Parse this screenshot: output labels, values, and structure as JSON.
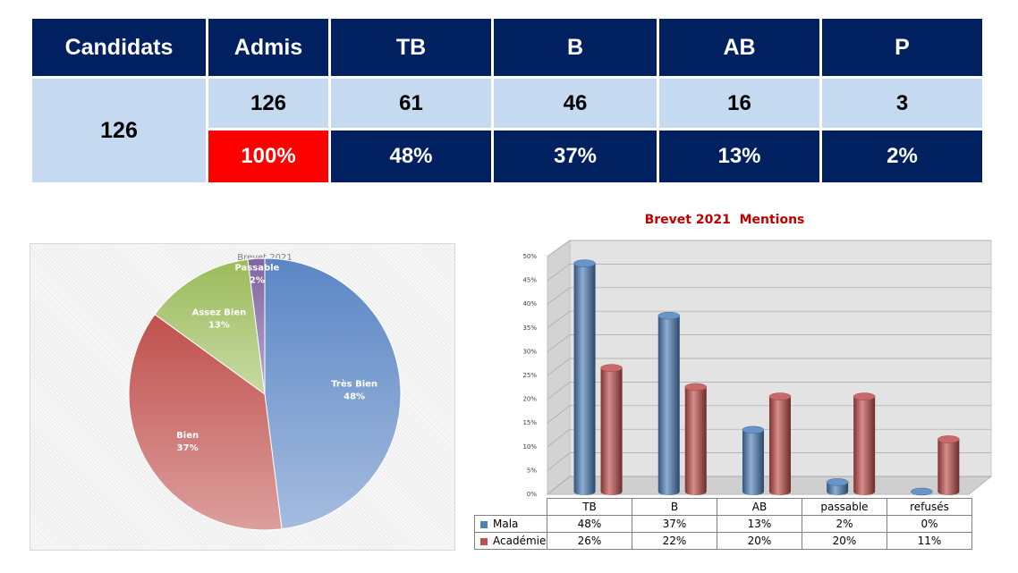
{
  "summary_table": {
    "headers": [
      "Candidats",
      "Admis",
      "TB",
      "B",
      "AB",
      "P"
    ],
    "candidats": "126",
    "counts": [
      "126",
      "61",
      "46",
      "16",
      "3"
    ],
    "percents": [
      "100%",
      "48%",
      "37%",
      "13%",
      "2%"
    ]
  },
  "colors": {
    "navy": "#002060",
    "light_blue": "#c5d9f1",
    "highlight_red": "#ff0000",
    "mala_blue": "#4f81bd",
    "academie_red": "#c0504d"
  },
  "chart_data": [
    {
      "type": "pie",
      "title": "Brevet 2021",
      "slices": [
        {
          "label": "Très Bien",
          "value": 48,
          "value_label": "48%",
          "color": "#5b86c5"
        },
        {
          "label": "Bien",
          "value": 37,
          "value_label": "37%",
          "color": "#c0504d"
        },
        {
          "label": "Assez Bien",
          "value": 13,
          "value_label": "13%",
          "color": "#9bbb59"
        },
        {
          "label": "Passable",
          "value": 2,
          "value_label": "2%",
          "color": "#8064a2"
        }
      ]
    },
    {
      "type": "bar",
      "title": "Brevet 2021  Mentions",
      "categories": [
        "TB",
        "B",
        "AB",
        "passable",
        "refusés"
      ],
      "series": [
        {
          "name": "Mala",
          "values": [
            48,
            37,
            13,
            2,
            0
          ],
          "labels": [
            "48%",
            "37%",
            "13%",
            "2%",
            "0%"
          ],
          "color": "#4f81bd"
        },
        {
          "name": "Académie",
          "values": [
            26,
            22,
            20,
            20,
            11
          ],
          "labels": [
            "26%",
            "22%",
            "20%",
            "20%",
            "11%"
          ],
          "color": "#c0504d"
        }
      ],
      "ylim": [
        0,
        50
      ],
      "yticks": [
        "0%",
        "5%",
        "10%",
        "15%",
        "20%",
        "25%",
        "30%",
        "35%",
        "40%",
        "45%",
        "50%"
      ],
      "grid": true,
      "legend": "data-table"
    }
  ]
}
